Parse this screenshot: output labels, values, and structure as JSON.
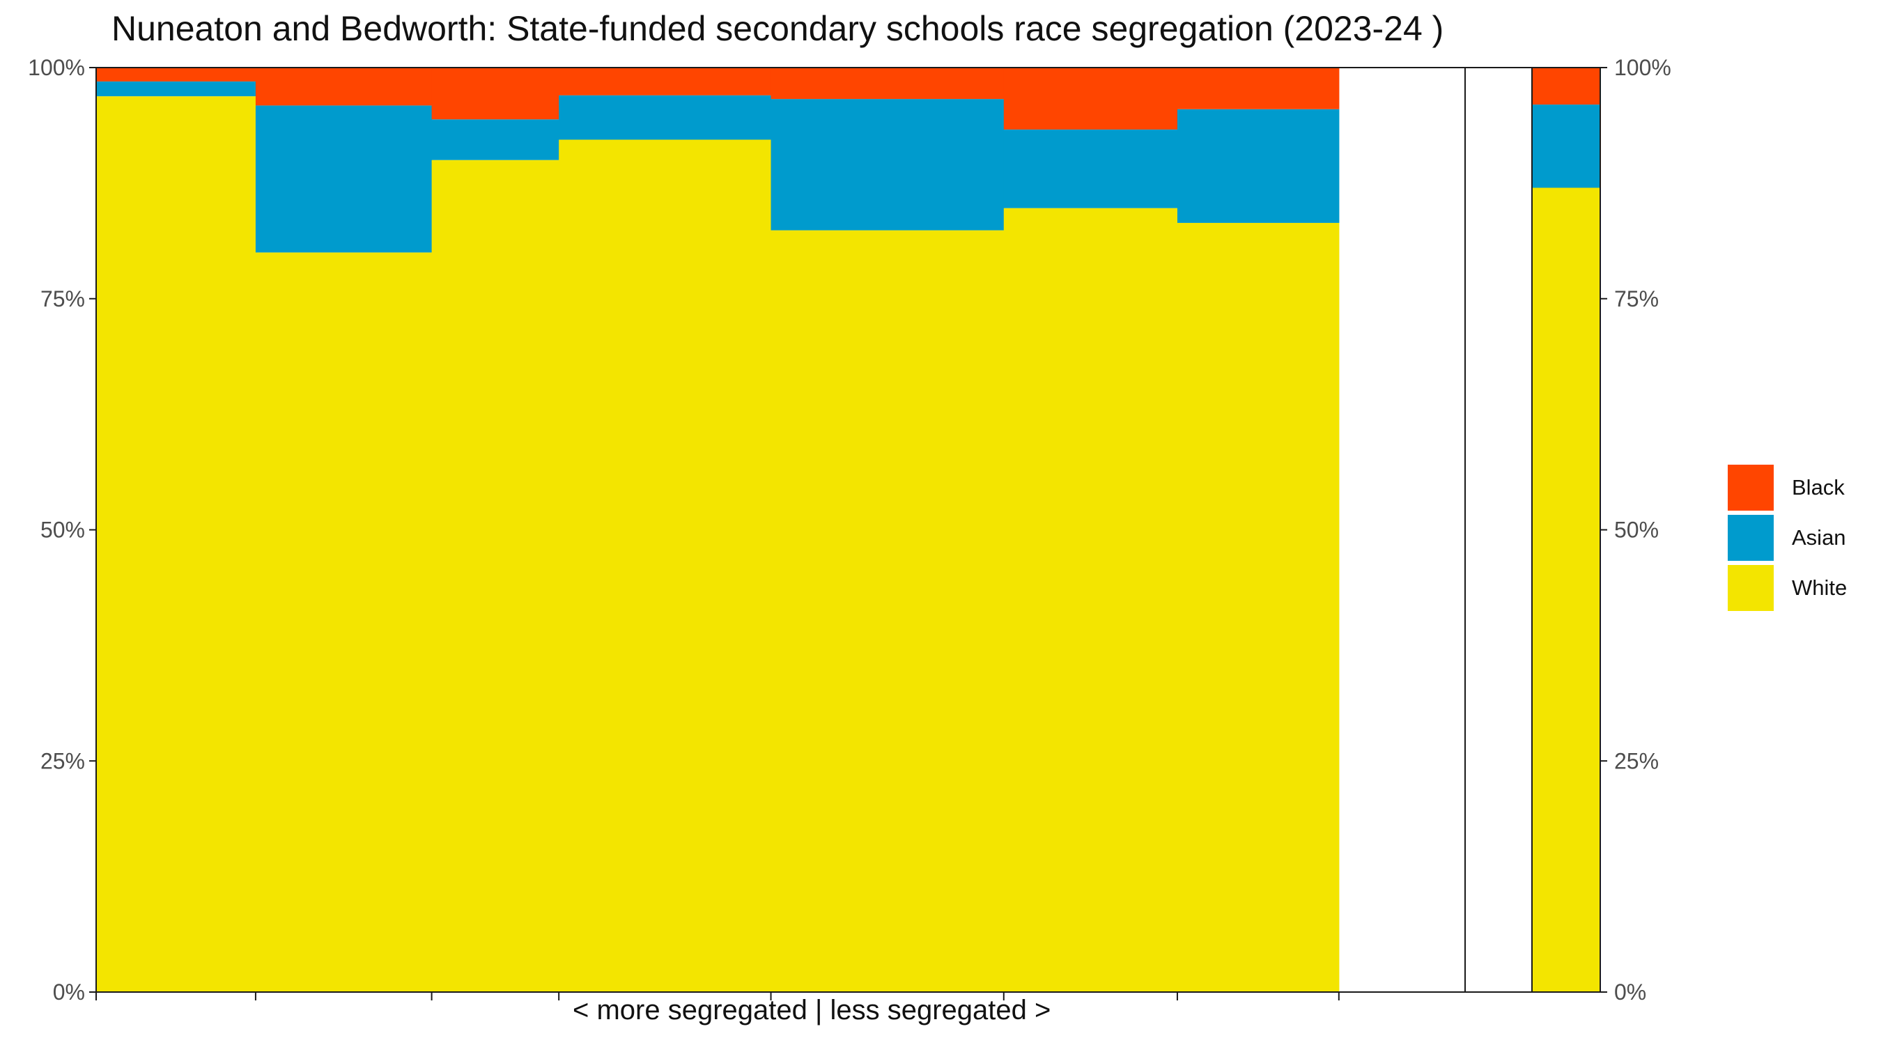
{
  "chart_data": {
    "type": "bar",
    "subtype": "stacked-variable-width (marimekko)",
    "title": "Nuneaton and Bedworth: State-funded secondary schools race segregation (2023-24 )",
    "xlabel": "< more segregated | less segregated >",
    "ylabel": "",
    "ylim": [
      0,
      100
    ],
    "yticks": [
      "0%",
      "25%",
      "50%",
      "75%",
      "100%"
    ],
    "secondary_y_axis": true,
    "grid": false,
    "legend_position": "right",
    "series": [
      {
        "name": "White",
        "color": "#F3E500"
      },
      {
        "name": "Asian",
        "color": "#009BCD"
      },
      {
        "name": "Black",
        "color": "#FF4500"
      }
    ],
    "schools": [
      {
        "width": 0.1165,
        "white": 96.9,
        "asian": 1.6,
        "black": 1.5
      },
      {
        "width": 0.1286,
        "white": 80.0,
        "asian": 15.9,
        "black": 4.1
      },
      {
        "width": 0.0929,
        "white": 90.0,
        "asian": 4.4,
        "black": 5.6
      },
      {
        "width": 0.1549,
        "white": 92.2,
        "asian": 4.8,
        "black": 3.0
      },
      {
        "width": 0.1701,
        "white": 82.4,
        "asian": 14.2,
        "black": 3.4
      },
      {
        "width": 0.1268,
        "white": 84.8,
        "asian": 8.5,
        "black": 6.7
      },
      {
        "width": 0.118,
        "white": 83.2,
        "asian": 12.3,
        "black": 4.5
      }
    ],
    "overall": {
      "white": 87.0,
      "asian": 9.0,
      "black": 4.0
    }
  }
}
